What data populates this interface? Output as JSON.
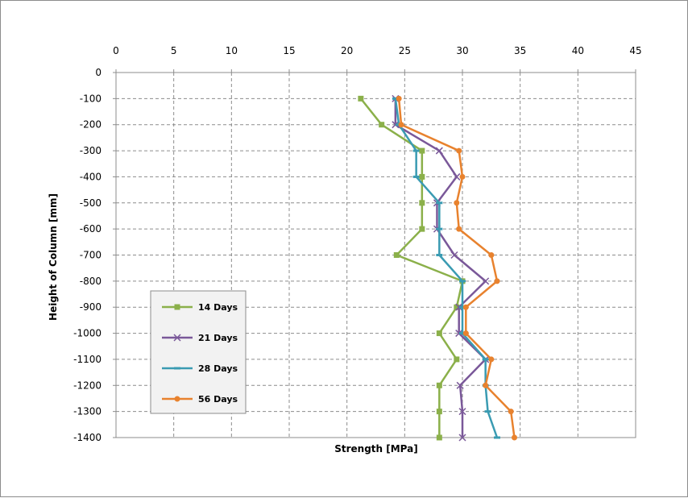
{
  "chart_data": {
    "type": "line",
    "orientation": "horizontal-values",
    "title": "",
    "xlabel": "Strength [MPa]",
    "ylabel": "Height of Column [mm]",
    "xlim": [
      0,
      45
    ],
    "ylim": [
      -1400,
      0
    ],
    "x_ticks": [
      "0",
      "5",
      "10",
      "15",
      "20",
      "25",
      "30",
      "35",
      "40",
      "45"
    ],
    "y_ticks": [
      "0",
      "-100",
      "-200",
      "-300",
      "-400",
      "-500",
      "-600",
      "-700",
      "-800",
      "-900",
      "-1000",
      "-1100",
      "-1200",
      "-1300",
      "-1400"
    ],
    "x_axis_position": "top",
    "grid": true,
    "legend_position": "bottom-left",
    "heights": [
      -100,
      -200,
      -300,
      -400,
      -500,
      -600,
      -700,
      -800,
      -900,
      -1000,
      -1100,
      -1200,
      -1300,
      -1400
    ],
    "series": [
      {
        "name": "14 Days",
        "color": "#8bb04a",
        "marker": "square",
        "values": [
          21.2,
          23.0,
          26.5,
          26.5,
          26.5,
          26.5,
          24.3,
          30.0,
          29.5,
          28.0,
          29.5,
          28.0,
          28.0,
          28.0
        ]
      },
      {
        "name": "21 Days",
        "color": "#7a5899",
        "marker": "x",
        "values": [
          24.2,
          24.2,
          28.0,
          29.5,
          27.8,
          27.8,
          29.3,
          32.0,
          29.7,
          29.7,
          32.0,
          29.8,
          30.0,
          30.0
        ]
      },
      {
        "name": "28 Days",
        "color": "#3a9bb2",
        "marker": "dash",
        "values": [
          24.2,
          24.5,
          26.0,
          26.0,
          28.0,
          28.0,
          28.0,
          30.0,
          30.0,
          30.0,
          32.0,
          32.0,
          32.2,
          33.0
        ]
      },
      {
        "name": "56 Days",
        "color": "#e8822e",
        "marker": "circle",
        "values": [
          24.5,
          24.7,
          29.7,
          30.0,
          29.5,
          29.7,
          32.5,
          33.0,
          30.3,
          30.3,
          32.5,
          32.0,
          34.2,
          34.5
        ]
      }
    ]
  }
}
